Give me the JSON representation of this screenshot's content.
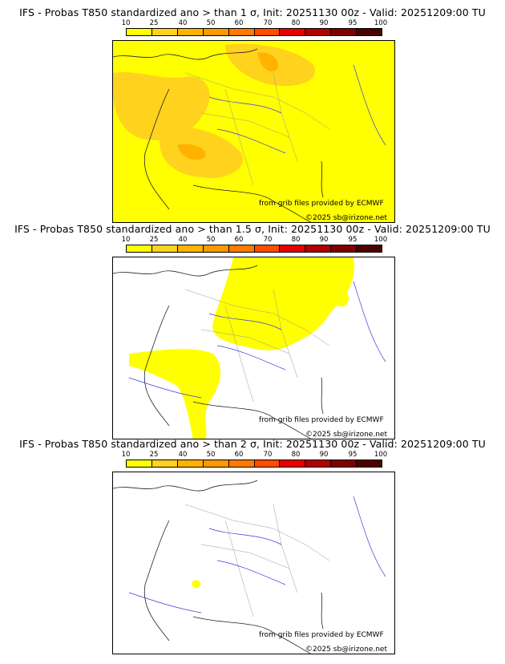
{
  "colorbar": {
    "ticks": [
      "10",
      "25",
      "40",
      "50",
      "60",
      "70",
      "80",
      "90",
      "95",
      "100"
    ],
    "colors": [
      "#ffff00",
      "#ffd21e",
      "#ffb300",
      "#ff9900",
      "#ff7a00",
      "#ff4d00",
      "#e60000",
      "#b30000",
      "#800000",
      "#4d0000"
    ]
  },
  "credits": {
    "source": "from grib files provided by ECMWF",
    "copyright": "©2025 sb@irizone.net"
  },
  "panels": [
    {
      "title": "IFS - Probas T850  standardized ano > than 1 σ, Init: 20251130 00z - Valid: 20251209:00 TU",
      "coverage": "high"
    },
    {
      "title": "IFS - Probas T850  standardized ano > than 1.5 σ, Init: 20251130 00z - Valid: 20251209:00 TU",
      "coverage": "medium"
    },
    {
      "title": "IFS - Probas T850  standardized ano > than 2 σ, Init: 20251130 00z - Valid: 20251209:00 TU",
      "coverage": "low"
    }
  ]
}
